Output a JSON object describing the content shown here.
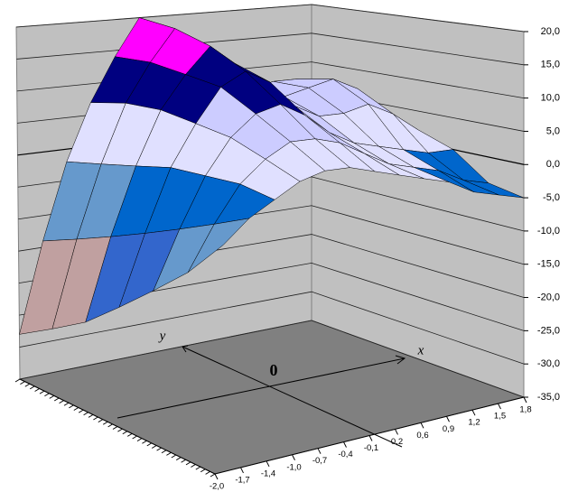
{
  "chart_data": {
    "type": "surface",
    "categories": [
      "-2,0",
      "-1,7",
      "-1,4",
      "-1,0",
      "-0,7",
      "-0,4",
      "-0,1",
      "0,2",
      "0,6",
      "0,9",
      "1,2",
      "1,5",
      "1,8"
    ],
    "series": [
      {
        "values": [
          -5,
          -2,
          0,
          2,
          3,
          3,
          2,
          1,
          0,
          -1,
          -3,
          -4,
          -5
        ]
      },
      {
        "values": [
          -10,
          -4,
          1,
          4,
          6,
          6,
          5,
          3,
          1,
          0,
          -1,
          -3,
          -4
        ]
      },
      {
        "values": [
          -14,
          -6,
          1,
          6,
          9,
          10,
          8,
          5,
          3,
          2,
          1,
          0,
          0
        ]
      },
      {
        "values": [
          -18,
          -8,
          1,
          7,
          12,
          14,
          12,
          8,
          6,
          6,
          7,
          5,
          2
        ]
      },
      {
        "values": [
          -22,
          -10,
          0,
          8,
          13,
          17,
          14,
          10,
          8,
          9,
          10,
          8,
          4
        ]
      },
      {
        "values": [
          -25,
          -12,
          -1,
          8,
          14,
          19,
          15,
          10,
          8,
          9,
          9,
          7,
          2
        ]
      },
      {
        "values": [
          -28,
          -14,
          -2,
          7,
          14,
          20,
          14,
          8,
          5,
          5,
          4,
          2,
          0
        ]
      }
    ],
    "zlim": [
      -35,
      20
    ],
    "zticks": [
      {
        "value": 20,
        "label": "20,0"
      },
      {
        "value": 15,
        "label": "15,0"
      },
      {
        "value": 10,
        "label": "10,0"
      },
      {
        "value": 5,
        "label": "5,0"
      },
      {
        "value": 0,
        "label": "0,0"
      },
      {
        "value": -5,
        "label": "-5,0"
      },
      {
        "value": -10,
        "label": "-10,0"
      },
      {
        "value": -15,
        "label": "-15,0"
      },
      {
        "value": -20,
        "label": "-20,0"
      },
      {
        "value": -25,
        "label": "-25,0"
      },
      {
        "value": -30,
        "label": "-30,0"
      },
      {
        "value": -35,
        "label": "-35,0"
      }
    ],
    "band_colors": [
      "#993366",
      "#cc6666",
      "#ff8080",
      "#c0a0a0",
      "#3366cc",
      "#6699cc",
      "#0066cc",
      "#e0e0ff",
      "#ccccff",
      "#000080",
      "#ff00ff"
    ],
    "grid": true,
    "annotations": [
      "y",
      "x",
      "0"
    ]
  }
}
